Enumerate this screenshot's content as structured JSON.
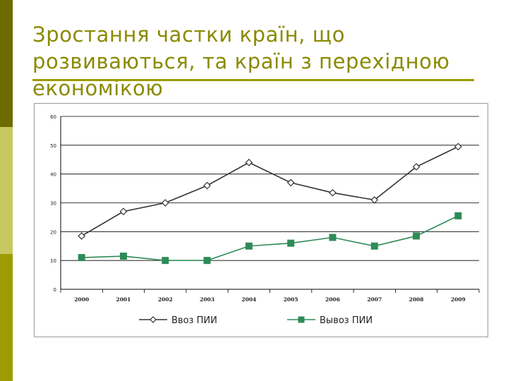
{
  "slide": {
    "title": "Зростання частки країн, що розвиваються, та країн з перехідною економікою"
  },
  "colors": {
    "stripe_dark": "#6b6b00",
    "stripe_light": "#c8c860",
    "stripe_olive": "#9c9c00",
    "title": "#8a8a00",
    "series_import": "#333333",
    "series_export": "#2e8b57"
  },
  "chart_data": {
    "type": "line",
    "title": "",
    "xlabel": "",
    "ylabel": "",
    "ylim": [
      0,
      60
    ],
    "yticks": [
      "0",
      "10",
      "20",
      "30",
      "40",
      "50",
      "60"
    ],
    "categories": [
      "2000",
      "2001",
      "2002",
      "2003",
      "2004",
      "2005",
      "2006",
      "2007",
      "2008",
      "2009"
    ],
    "grid": true,
    "legend_position": "bottom",
    "series": [
      {
        "name": "Ввоз ПИИ",
        "marker": "diamond-open",
        "color": "#333333",
        "values": [
          18.5,
          27,
          30,
          36,
          44,
          37,
          33.5,
          31,
          42.5,
          49.5
        ]
      },
      {
        "name": "Вывоз ПИИ",
        "marker": "square-filled",
        "color": "#2e8b57",
        "values": [
          11,
          11.5,
          10,
          10,
          15,
          16,
          18,
          15,
          18.5,
          25.5
        ]
      }
    ]
  }
}
